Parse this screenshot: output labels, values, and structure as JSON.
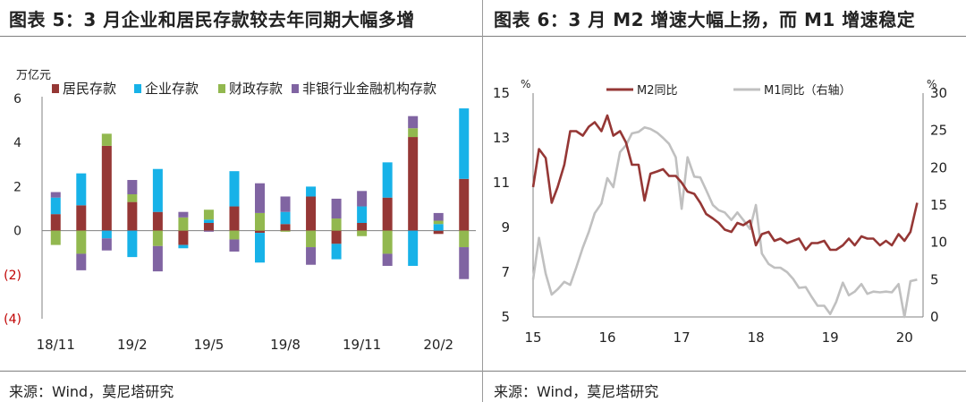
{
  "left": {
    "title": "图表 5：3 月企业和居民存款较去年同期大幅多增",
    "source": "来源：Wind，莫尼塔研究"
  },
  "right": {
    "title": "图表 6：3 月 M2 增速大幅上扬，而 M1 增速稳定",
    "source": "来源：Wind，莫尼塔研究"
  },
  "chart_data": [
    {
      "type": "bar",
      "stacked": true,
      "unit": "万亿元",
      "ylim": [
        -4,
        6
      ],
      "yticks": [
        "6",
        "4",
        "2",
        "0",
        "(2)",
        "(4)"
      ],
      "xtick_labels": [
        "18/11",
        "19/2",
        "19/5",
        "19/8",
        "19/11",
        "20/2"
      ],
      "categories": [
        "18/11",
        "18/12",
        "19/1",
        "19/2",
        "19/3",
        "19/4",
        "19/5",
        "19/6",
        "19/7",
        "19/8",
        "19/9",
        "19/10",
        "19/11",
        "19/12",
        "20/1",
        "20/2",
        "20/3"
      ],
      "legend_position": "top",
      "series": [
        {
          "name": "居民存款",
          "color": "#953735",
          "values": [
            0.75,
            1.15,
            3.85,
            1.3,
            0.85,
            -0.65,
            0.35,
            1.1,
            -0.1,
            0.3,
            1.55,
            -0.6,
            0.35,
            1.5,
            4.25,
            -0.15,
            2.35
          ]
        },
        {
          "name": "企业存款",
          "color": "#17b2e8",
          "values": [
            0.75,
            1.45,
            -0.35,
            -1.2,
            1.95,
            -0.15,
            0.15,
            1.6,
            -1.35,
            0.55,
            0.45,
            -0.7,
            0.75,
            1.6,
            -1.6,
            0.3,
            3.2
          ]
        },
        {
          "name": "财政存款",
          "color": "#92b84f",
          "values": [
            -0.65,
            -1.05,
            0.55,
            0.35,
            -0.7,
            0.6,
            0.45,
            -0.4,
            0.8,
            -0.05,
            -0.75,
            0.55,
            -0.25,
            -1.05,
            0.4,
            0.15,
            -0.75
          ]
        },
        {
          "name": "非银行业金融机构存款",
          "color": "#8064a2",
          "values": [
            0.25,
            -0.75,
            -0.55,
            0.65,
            -1.15,
            0.25,
            -0.05,
            -0.55,
            1.35,
            0.7,
            -0.8,
            0.9,
            0.7,
            -0.55,
            0.55,
            0.35,
            -1.45
          ]
        }
      ]
    },
    {
      "type": "line",
      "unit_left": "%",
      "unit_right": "%",
      "ylim_left": [
        5,
        15
      ],
      "ylim_right": [
        0,
        30
      ],
      "xlim": [
        15,
        20.25
      ],
      "xticks": [
        "15",
        "16",
        "17",
        "18",
        "19",
        "20"
      ],
      "yticks_left": [
        "5",
        "7",
        "9",
        "11",
        "13",
        "15"
      ],
      "yticks_right": [
        "0",
        "5",
        "10",
        "15",
        "20",
        "25",
        "30"
      ],
      "legend_position": "top",
      "series": [
        {
          "name": "M2同比",
          "axis": "left",
          "color": "#953735",
          "x": [
            15.0,
            15.08,
            15.17,
            15.25,
            15.33,
            15.42,
            15.5,
            15.58,
            15.67,
            15.75,
            15.83,
            15.92,
            16.0,
            16.08,
            16.17,
            16.25,
            16.33,
            16.42,
            16.5,
            16.58,
            16.67,
            16.75,
            16.83,
            16.92,
            17.0,
            17.08,
            17.17,
            17.25,
            17.33,
            17.42,
            17.5,
            17.58,
            17.67,
            17.75,
            17.83,
            17.92,
            18.0,
            18.08,
            18.17,
            18.25,
            18.33,
            18.42,
            18.5,
            18.58,
            18.67,
            18.75,
            18.83,
            18.92,
            19.0,
            19.08,
            19.17,
            19.25,
            19.33,
            19.42,
            19.5,
            19.58,
            19.67,
            19.75,
            19.83,
            19.92,
            20.0,
            20.08,
            20.17
          ],
          "y": [
            10.8,
            12.5,
            12.1,
            10.1,
            10.8,
            11.8,
            13.3,
            13.3,
            13.1,
            13.5,
            13.7,
            13.3,
            14.0,
            13.1,
            13.3,
            12.8,
            11.8,
            11.8,
            10.2,
            11.4,
            11.5,
            11.6,
            11.3,
            11.3,
            11.0,
            10.6,
            10.5,
            10.1,
            9.6,
            9.4,
            9.2,
            8.9,
            8.8,
            9.2,
            9.1,
            9.3,
            8.2,
            8.7,
            8.8,
            8.4,
            8.5,
            8.3,
            8.4,
            8.5,
            8.0,
            8.3,
            8.3,
            8.4,
            8.0,
            8.0,
            8.2,
            8.5,
            8.2,
            8.6,
            8.5,
            8.5,
            8.2,
            8.4,
            8.2,
            8.7,
            8.4,
            8.8,
            10.1
          ]
        },
        {
          "name": "M1同比（右轴）",
          "axis": "right",
          "color": "#c0c0c0",
          "x": [
            15.0,
            15.08,
            15.17,
            15.25,
            15.33,
            15.42,
            15.5,
            15.58,
            15.67,
            15.75,
            15.83,
            15.92,
            16.0,
            16.08,
            16.17,
            16.25,
            16.33,
            16.42,
            16.5,
            16.58,
            16.67,
            16.75,
            16.83,
            16.92,
            17.0,
            17.08,
            17.17,
            17.25,
            17.33,
            17.42,
            17.5,
            17.58,
            17.67,
            17.75,
            17.83,
            17.92,
            18.0,
            18.08,
            18.17,
            18.25,
            18.33,
            18.42,
            18.5,
            18.58,
            18.67,
            18.75,
            18.83,
            18.92,
            19.0,
            19.08,
            19.17,
            19.25,
            19.33,
            19.42,
            19.5,
            19.58,
            19.67,
            19.75,
            19.83,
            19.92,
            20.0,
            20.08,
            20.17
          ],
          "y": [
            5.0,
            10.6,
            5.8,
            3.0,
            3.7,
            4.7,
            4.3,
            6.6,
            9.3,
            11.4,
            13.9,
            15.2,
            18.6,
            17.4,
            22.1,
            23.0,
            24.6,
            24.8,
            25.4,
            25.2,
            24.7,
            24.0,
            23.2,
            21.4,
            14.5,
            21.4,
            18.8,
            18.7,
            17.0,
            15.0,
            14.3,
            14.0,
            13.0,
            14.0,
            13.0,
            11.8,
            15.0,
            8.5,
            7.1,
            6.6,
            6.6,
            6.0,
            5.1,
            3.9,
            4.0,
            2.7,
            1.5,
            1.5,
            0.4,
            2.0,
            4.6,
            2.9,
            3.4,
            4.4,
            3.1,
            3.4,
            3.3,
            3.4,
            3.3,
            4.4,
            0.0,
            4.8,
            5.0
          ]
        }
      ]
    }
  ]
}
